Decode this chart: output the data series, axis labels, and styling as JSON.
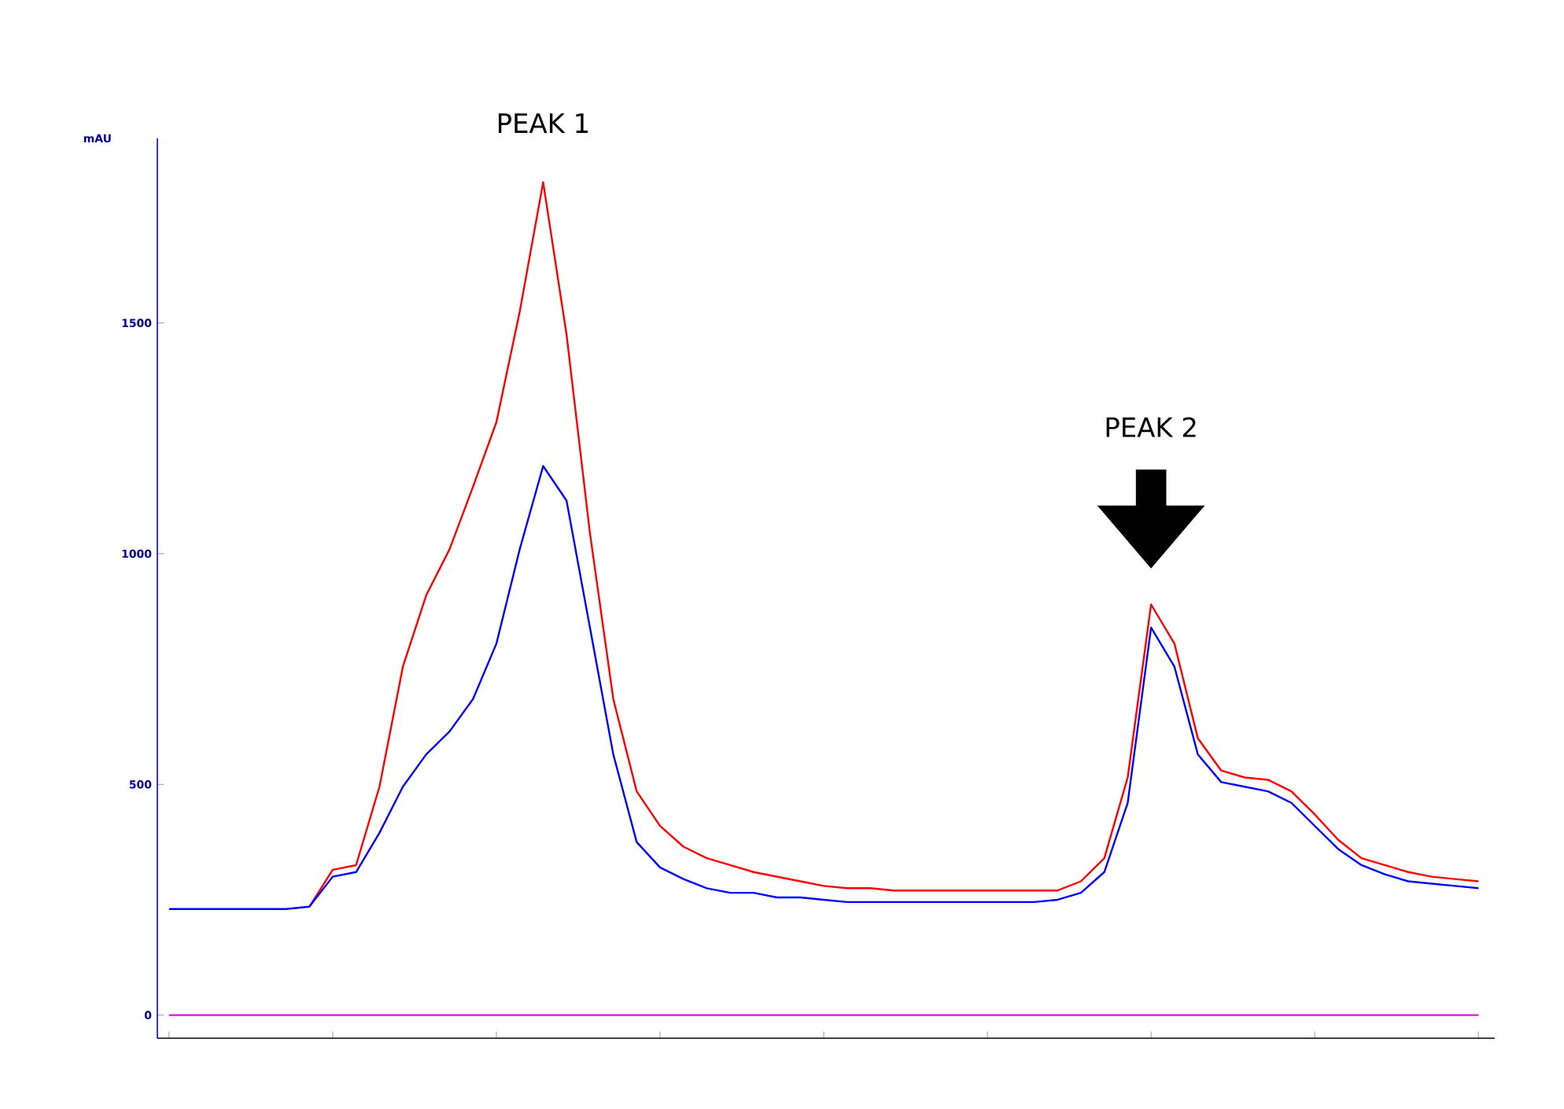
{
  "chart_data": {
    "type": "line",
    "ylabel": "mAU",
    "annotations": [
      "PEAK 1",
      "PEAK 2"
    ],
    "categories": [
      null,
      null,
      null,
      null,
      null,
      null,
      null,
      null,
      null,
      null,
      null,
      null,
      null,
      null,
      null,
      null,
      null,
      null,
      null,
      null,
      null,
      null,
      null,
      null,
      null,
      null,
      null,
      null,
      null,
      null,
      null,
      null,
      null,
      null,
      null,
      null,
      null,
      null,
      null,
      null,
      null,
      null,
      null,
      null,
      null,
      null,
      null,
      null,
      null,
      null,
      null,
      null,
      null,
      null,
      null,
      null,
      null
    ],
    "series": [
      {
        "color": "#ff00ff",
        "values": [
          0,
          0,
          0,
          0,
          0,
          0,
          0,
          0,
          0,
          0,
          0,
          0,
          0,
          0,
          0,
          0,
          0,
          0,
          0,
          0,
          0,
          0,
          0,
          0,
          0,
          0,
          0,
          0,
          0,
          0,
          0,
          0,
          0,
          0,
          0,
          0,
          0,
          0,
          0,
          0,
          0,
          0,
          0,
          0,
          0,
          0,
          0,
          0,
          0,
          0,
          0,
          0,
          0,
          0,
          0,
          0,
          0
        ]
      },
      {
        "color": "#ff0000",
        "values": [
          null,
          null,
          null,
          null,
          null,
          null,
          235,
          315,
          325,
          495,
          755,
          910,
          1010,
          1145,
          1285,
          1525,
          1805,
          1475,
          1045,
          685,
          485,
          410,
          365,
          340,
          325,
          310,
          300,
          290,
          280,
          275,
          275,
          270,
          270,
          270,
          270,
          270,
          270,
          270,
          270,
          290,
          340,
          515,
          890,
          805,
          600,
          530,
          515,
          510,
          485,
          435,
          380,
          340,
          325,
          310,
          300,
          295,
          290
        ]
      },
      {
        "color": "#0000ff",
        "values": [
          230,
          230,
          230,
          230,
          230,
          230,
          235,
          300,
          310,
          395,
          495,
          565,
          615,
          685,
          805,
          1010,
          1190,
          1115,
          840,
          565,
          375,
          320,
          295,
          275,
          265,
          265,
          255,
          255,
          250,
          245,
          245,
          245,
          245,
          245,
          245,
          245,
          245,
          245,
          250,
          265,
          310,
          460,
          840,
          755,
          565,
          505,
          495,
          485,
          460,
          410,
          360,
          325,
          305,
          290,
          285,
          280,
          275
        ]
      }
    ],
    "ylim": [
      -50,
      1900
    ],
    "yticks": [
      0,
      500,
      1000,
      1500
    ],
    "tick_labels": "y"
  }
}
